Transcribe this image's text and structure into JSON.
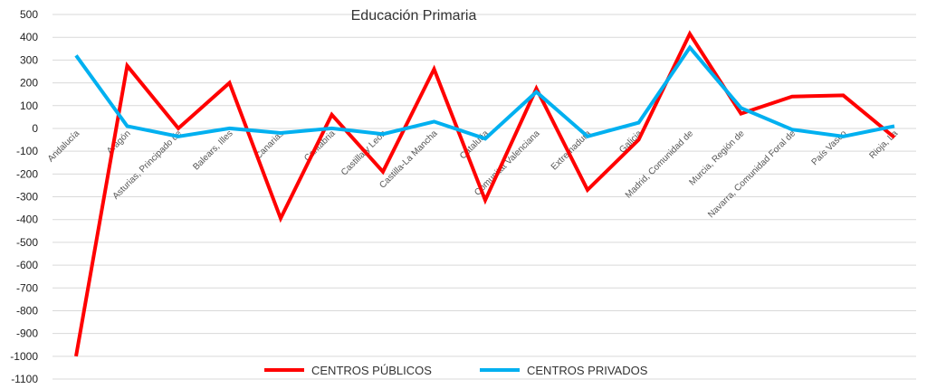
{
  "chart_data": {
    "type": "line",
    "title": "Educación Primaria",
    "xlabel": "",
    "ylabel": "",
    "ylim": [
      -1100,
      500
    ],
    "ytick_step": 100,
    "grid": true,
    "legend_position": "bottom",
    "categories": [
      "Andalucía",
      "Aragón",
      "Asturias, Principado de",
      "Balears, Illes",
      "Canarias",
      "Cantabria",
      "Castilla y León",
      "Castilla-La Mancha",
      "Cataluña",
      "Comunitat Valenciana",
      "Extremadura",
      "Galicia",
      "Madrid, Comunidad de",
      "Murcia, Región de",
      "Navarra, Comunidad Foral de",
      "País Vasco",
      "Rioja, La"
    ],
    "series": [
      {
        "name": "CENTROS PÚBLICOS",
        "color": "#ff0000",
        "values": [
          -1000,
          275,
          0,
          200,
          -395,
          60,
          -190,
          260,
          -315,
          175,
          -270,
          -50,
          415,
          65,
          140,
          145,
          -40
        ]
      },
      {
        "name": "CENTROS PRIVADOS",
        "color": "#00b0f0",
        "values": [
          320,
          10,
          -35,
          0,
          -20,
          0,
          -25,
          30,
          -45,
          160,
          -35,
          25,
          355,
          90,
          -5,
          -35,
          10
        ]
      }
    ]
  }
}
